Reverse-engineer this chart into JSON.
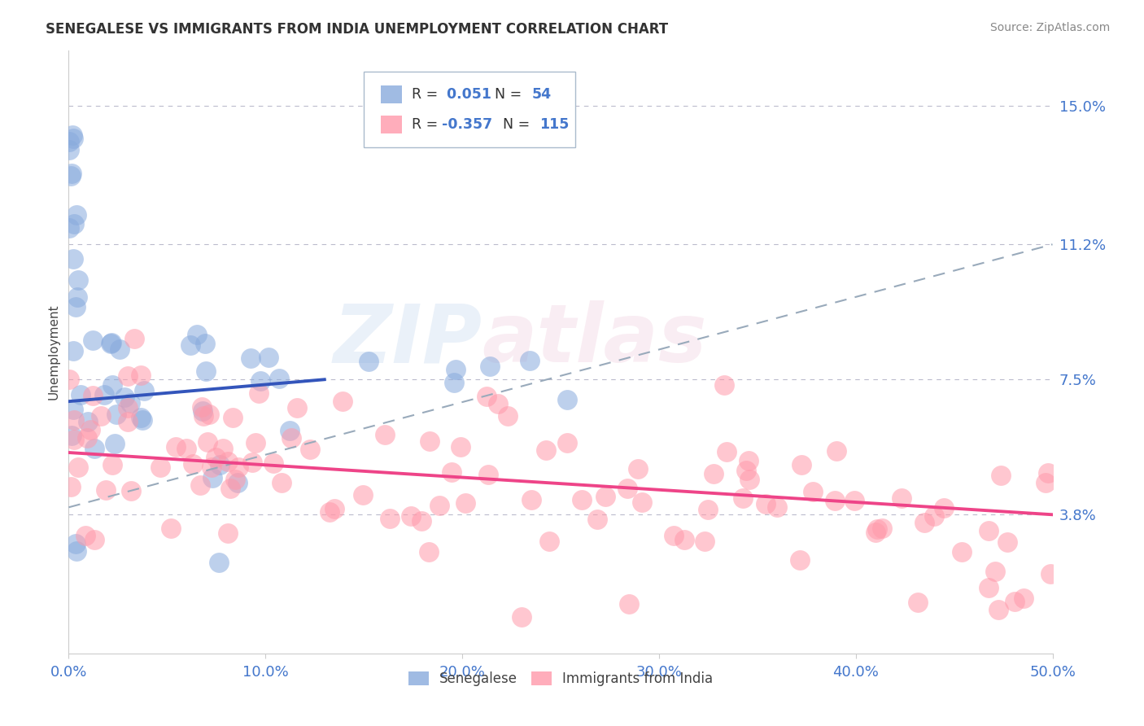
{
  "title": "SENEGALESE VS IMMIGRANTS FROM INDIA UNEMPLOYMENT CORRELATION CHART",
  "source": "Source: ZipAtlas.com",
  "ylabel": "Unemployment",
  "xlim": [
    0.0,
    0.5
  ],
  "ylim": [
    0.0,
    0.165
  ],
  "yticks": [
    0.038,
    0.075,
    0.112,
    0.15
  ],
  "ytick_labels": [
    "3.8%",
    "7.5%",
    "11.2%",
    "15.0%"
  ],
  "xticks": [
    0.0,
    0.1,
    0.2,
    0.3,
    0.4,
    0.5
  ],
  "xtick_labels": [
    "0.0%",
    "10.0%",
    "20.0%",
    "30.0%",
    "40.0%",
    "50.0%"
  ],
  "blue_color": "#88AADD",
  "pink_color": "#FF99AA",
  "blue_line_color": "#3355BB",
  "pink_line_color": "#EE4488",
  "dashed_line_color": "#99AABB",
  "blue_R": "0.051",
  "blue_N": "54",
  "pink_R": "-0.357",
  "pink_N": "115",
  "legend_label_blue": "Senegalese",
  "legend_label_pink": "Immigrants from India",
  "blue_trend_x": [
    0.0,
    0.13
  ],
  "blue_trend_y": [
    0.069,
    0.075
  ],
  "dashed_trend_x": [
    0.0,
    0.5
  ],
  "dashed_trend_y": [
    0.04,
    0.112
  ],
  "pink_trend_x": [
    0.0,
    0.5
  ],
  "pink_trend_y": [
    0.055,
    0.038
  ]
}
